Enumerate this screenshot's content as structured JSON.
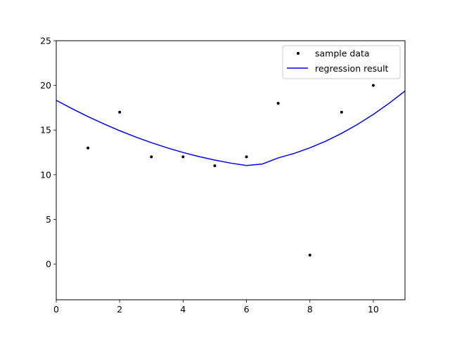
{
  "chart_data": {
    "type": "scatter",
    "title": "",
    "xlabel": "",
    "ylabel": "",
    "xlim": [
      0,
      11
    ],
    "ylim": [
      -4,
      25
    ],
    "xticks": [
      0,
      2,
      4,
      6,
      8,
      10
    ],
    "yticks": [
      0,
      5,
      10,
      15,
      20,
      25
    ],
    "grid": false,
    "legend_position": "top-right",
    "series": [
      {
        "name": "sample data",
        "kind": "scatter",
        "color": "#000000",
        "x": [
          1,
          2,
          3,
          4,
          5,
          6,
          7,
          8,
          9,
          10
        ],
        "y": [
          13,
          17,
          12,
          12,
          11,
          12,
          18,
          1,
          17,
          20
        ]
      },
      {
        "name": "regression result",
        "kind": "line",
        "color": "#0000ff",
        "x": [
          0,
          0.5,
          1,
          1.5,
          2,
          2.5,
          3,
          3.5,
          4,
          4.5,
          5,
          5.5,
          6,
          6.5,
          7,
          7.5,
          8,
          8.5,
          9,
          9.5,
          10,
          10.5,
          11
        ],
        "y": [
          18.33,
          17.39,
          16.51,
          15.69,
          14.93,
          14.23,
          13.59,
          13.01,
          12.49,
          12.03,
          11.64,
          11.3,
          11.03,
          11.2,
          11.88,
          12.38,
          13.01,
          13.76,
          14.63,
          15.63,
          16.75,
          18.0,
          19.37
        ]
      }
    ]
  }
}
